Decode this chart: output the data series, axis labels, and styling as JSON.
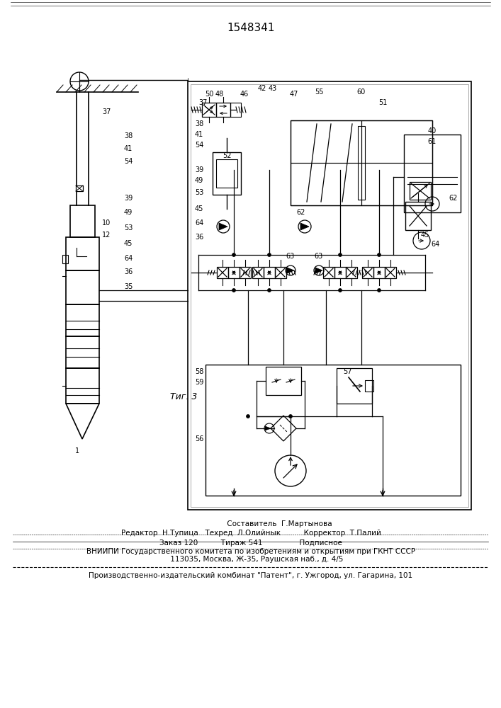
{
  "patent_number": "1548341",
  "fig_label": "Τиг. 3",
  "background_color": "#ffffff",
  "line_color": "#000000",
  "label_fontsize": 7.0,
  "footer_line1a": "                         Составитель  Г.Мартынова",
  "footer_line1b": "Редактор  Н.Тупица   Техред  Л.Олийнык          Корректор  Т.Палий",
  "footer_line2": "Заказ 120          Тираж 541                Подписное",
  "footer_line3": "ВНИИПИ Государственного комитета по изобретениям и открытиям при ГКНТ СССР",
  "footer_line4": "     113035, Москва, Ж-35, Раушская наб., д. 4/5",
  "footer_line5": "Производственно-издательский комбинат \"Патент\", г. Ужгород, ул. Гагарина, 101"
}
